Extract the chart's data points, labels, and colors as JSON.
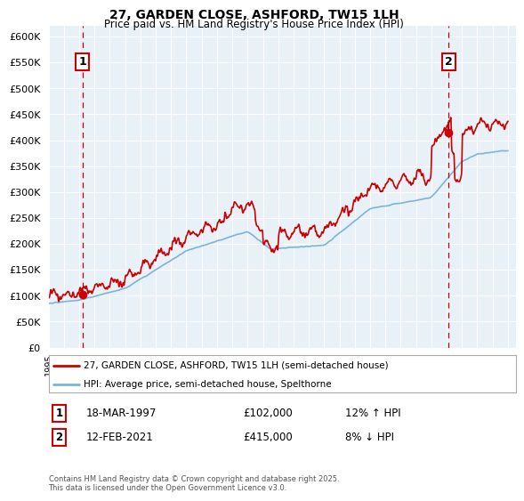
{
  "title_line1": "27, GARDEN CLOSE, ASHFORD, TW15 1LH",
  "title_line2": "Price paid vs. HM Land Registry's House Price Index (HPI)",
  "ytick_values": [
    0,
    50000,
    100000,
    150000,
    200000,
    250000,
    300000,
    350000,
    400000,
    450000,
    500000,
    550000,
    600000
  ],
  "year_start": 1995,
  "year_end": 2025,
  "hpi_color": "#7cb4d8",
  "price_color": "#cc0000",
  "vline_color": "#cc0000",
  "plot_bg_color": "#e8f0f8",
  "grid_color": "#ffffff",
  "sale1_year": 1997.21,
  "sale1_price": 102000,
  "sale1_label": "1",
  "sale1_hpi_label": "12% ↑ HPI",
  "sale1_date": "18-MAR-1997",
  "sale2_year": 2021.12,
  "sale2_price": 415000,
  "sale2_label": "2",
  "sale2_hpi_label": "8% ↓ HPI",
  "sale2_date": "12-FEB-2021",
  "legend_line1": "27, GARDEN CLOSE, ASHFORD, TW15 1LH (semi-detached house)",
  "legend_line2": "HPI: Average price, semi-detached house, Spelthorne",
  "footnote": "Contains HM Land Registry data © Crown copyright and database right 2025.\nThis data is licensed under the Open Government Licence v3.0.",
  "xlim_start": 1995,
  "xlim_end": 2025.5,
  "ylim_max": 620000,
  "fig_width": 6.0,
  "fig_height": 5.6
}
